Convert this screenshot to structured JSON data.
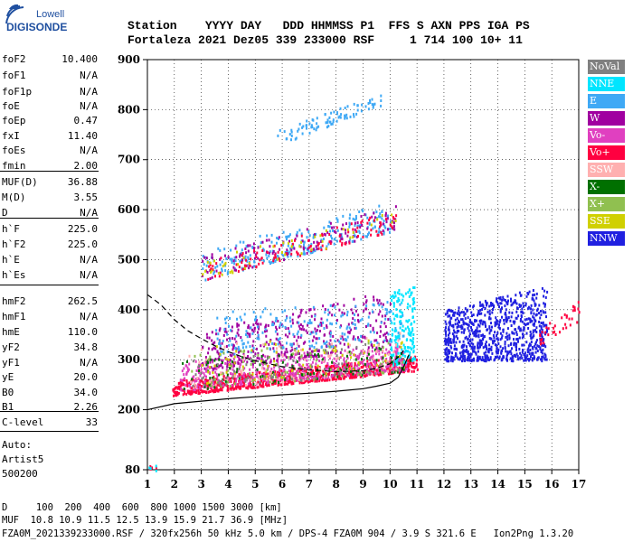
{
  "logo": {
    "line1": "Lowell",
    "line2": "DIGISONDE"
  },
  "header": {
    "labels": "Station    YYYY DAY   DDD HHMMSS P1  FFS S AXN PPS IGA PS",
    "values": "Fortaleza 2021 Dez05 339 233000 RSF     1 714 100 10+ 11"
  },
  "params": [
    {
      "name": "foF2",
      "value": "10.400"
    },
    {
      "name": "foF1",
      "value": "N/A"
    },
    {
      "name": "foF1p",
      "value": "N/A"
    },
    {
      "name": "foE",
      "value": "N/A"
    },
    {
      "name": "foEp",
      "value": "0.47"
    },
    {
      "name": "fxI",
      "value": "11.40"
    },
    {
      "name": "foEs",
      "value": "N/A"
    },
    {
      "name": "fmin",
      "value": "2.00"
    },
    {
      "name": "MUF(D)",
      "value": "36.88"
    },
    {
      "name": "M(D)",
      "value": "3.55"
    },
    {
      "name": "D",
      "value": "N/A"
    },
    {
      "name": "h`F",
      "value": "225.0"
    },
    {
      "name": "h`F2",
      "value": "225.0"
    },
    {
      "name": "h`E",
      "value": "N/A"
    },
    {
      "name": "h`Es",
      "value": "N/A"
    },
    {
      "name": "hmF2",
      "value": "262.5"
    },
    {
      "name": "hmF1",
      "value": "N/A"
    },
    {
      "name": "hmE",
      "value": "110.0"
    },
    {
      "name": "yF2",
      "value": "34.8"
    },
    {
      "name": "yF1",
      "value": "N/A"
    },
    {
      "name": "yE",
      "value": "20.0"
    },
    {
      "name": "B0",
      "value": "34.0"
    },
    {
      "name": "B1",
      "value": "2.26"
    }
  ],
  "clevel": {
    "name": "C-level",
    "value": "33"
  },
  "auto": [
    "Auto:",
    "Artist5",
    "500200"
  ],
  "legend": [
    {
      "label": "NoVal",
      "color": "#808080",
      "text": "#ffffff"
    },
    {
      "label": "NNE",
      "color": "#00e5ff",
      "text": "#ffffff"
    },
    {
      "label": "E",
      "color": "#3fa9f5",
      "text": "#ffffff"
    },
    {
      "label": "W",
      "color": "#a000a0",
      "text": "#ffffff"
    },
    {
      "label": "Vo-",
      "color": "#e040c0",
      "text": "#ffffff"
    },
    {
      "label": "Vo+",
      "color": "#ff0040",
      "text": "#ffffff"
    },
    {
      "label": "SSW",
      "color": "#ffb0b0",
      "text": "#ffffff"
    },
    {
      "label": "X-",
      "color": "#007000",
      "text": "#ffffff"
    },
    {
      "label": "X+",
      "color": "#90c050",
      "text": "#ffffff"
    },
    {
      "label": "SSE",
      "color": "#d0d000",
      "text": "#ffffff"
    },
    {
      "label": "NNW",
      "color": "#2020e0",
      "text": "#ffffff"
    }
  ],
  "footer": {
    "line1": "D     100  200  400  600  800 1000 1500 3000 [km]",
    "line2": "MUF  10.8 10.9 11.5 12.5 13.9 15.9 21.7 36.9 [MHz]",
    "line3": "FZA0M_2021339233000.RSF / 320fx256h 50 kHz 5.0 km / DPS-4 FZA0M 904 / 3.9 S 321.6 E   Ion2Png 1.3.20"
  },
  "chart_data": {
    "type": "scatter",
    "xlim": [
      1,
      17
    ],
    "ylim": [
      80,
      900
    ],
    "x_ticks": [
      "1",
      "2",
      "3",
      "4",
      "5",
      "6",
      "7",
      "8",
      "9",
      "10",
      "11",
      "12",
      "13",
      "14",
      "15",
      "16",
      "17"
    ],
    "y_ticks": [
      "80",
      "200",
      "300",
      "400",
      "500",
      "600",
      "700",
      "800",
      "900"
    ],
    "grid": true,
    "clusters": [
      {
        "color": "#ff0040",
        "xr": [
          1.9,
          11.0
        ],
        "ymin": [
          230,
          280
        ],
        "ymax": [
          260,
          310
        ],
        "n": 900
      },
      {
        "color": "#e040c0",
        "xr": [
          2.2,
          10.6
        ],
        "ymin": [
          240,
          280
        ],
        "ymax": [
          300,
          330
        ],
        "n": 500
      },
      {
        "color": "#a000a0",
        "xr": [
          3.0,
          10.0
        ],
        "ymin": [
          280,
          330
        ],
        "ymax": [
          360,
          440
        ],
        "n": 380
      },
      {
        "color": "#3fa9f5",
        "xr": [
          3.5,
          10.5
        ],
        "ymin": [
          310,
          340
        ],
        "ymax": [
          400,
          420
        ],
        "n": 220
      },
      {
        "color": "#2020e0",
        "xr": [
          12.0,
          15.8
        ],
        "ymin": [
          300,
          300
        ],
        "ymax": [
          400,
          450
        ],
        "n": 850
      },
      {
        "color": "#00e5ff",
        "xr": [
          10.0,
          10.9
        ],
        "ymin": [
          290,
          300
        ],
        "ymax": [
          440,
          450
        ],
        "n": 160
      },
      {
        "color": "#007000",
        "xr": [
          2.2,
          10.8
        ],
        "ymin": [
          240,
          280
        ],
        "ymax": [
          300,
          330
        ],
        "n": 110
      },
      {
        "color": "#90c050",
        "xr": [
          2.5,
          10.6
        ],
        "ymin": [
          240,
          280
        ],
        "ymax": [
          320,
          340
        ],
        "n": 90
      },
      {
        "color": "#d0d000",
        "xr": [
          3.0,
          10.5
        ],
        "ymin": [
          250,
          290
        ],
        "ymax": [
          330,
          360
        ],
        "n": 70
      },
      {
        "color": "#ffb0b0",
        "xr": [
          2.5,
          10.7
        ],
        "ymin": [
          240,
          280
        ],
        "ymax": [
          330,
          360
        ],
        "n": 90
      },
      {
        "color": "#808080",
        "xr": [
          2.5,
          10.5
        ],
        "ymin": [
          240,
          280
        ],
        "ymax": [
          320,
          340
        ],
        "n": 70
      },
      {
        "color": "#3fa9f5",
        "xr": [
          3.0,
          10.2
        ],
        "ymin": [
          460,
          560
        ],
        "ymax": [
          520,
          620
        ],
        "n": 260
      },
      {
        "color": "#a000a0",
        "xr": [
          3.0,
          10.2
        ],
        "ymin": [
          460,
          560
        ],
        "ymax": [
          510,
          610
        ],
        "n": 130
      },
      {
        "color": "#ff0040",
        "xr": [
          3.0,
          10.2
        ],
        "ymin": [
          460,
          560
        ],
        "ymax": [
          500,
          600
        ],
        "n": 110
      },
      {
        "color": "#d0d000",
        "xr": [
          3.0,
          10.2
        ],
        "ymin": [
          460,
          560
        ],
        "ymax": [
          500,
          600
        ],
        "n": 50
      },
      {
        "color": "#3fa9f5",
        "xr": [
          5.8,
          9.7
        ],
        "ymin": [
          730,
          810
        ],
        "ymax": [
          760,
          835
        ],
        "n": 90
      },
      {
        "color": "#ff0040",
        "xr": [
          15.5,
          17.0
        ],
        "ymin": [
          330,
          380
        ],
        "ymax": [
          360,
          420
        ],
        "n": 40
      },
      {
        "color": "#ff0040",
        "xr": [
          0.9,
          1.3
        ],
        "ymin": [
          80,
          80
        ],
        "ymax": [
          90,
          90
        ],
        "n": 6
      },
      {
        "color": "#00e5ff",
        "xr": [
          0.9,
          1.3
        ],
        "ymin": [
          80,
          80
        ],
        "ymax": [
          90,
          90
        ],
        "n": 6
      }
    ],
    "trace_solid": [
      [
        1,
        200
      ],
      [
        2,
        212
      ],
      [
        3,
        217
      ],
      [
        4,
        222
      ],
      [
        5,
        226
      ],
      [
        6,
        230
      ],
      [
        7,
        233
      ],
      [
        8,
        237
      ],
      [
        9,
        242
      ],
      [
        9.5,
        247
      ],
      [
        10,
        253
      ],
      [
        10.3,
        265
      ],
      [
        10.5,
        285
      ],
      [
        10.7,
        310
      ]
    ],
    "trace_dashed": [
      [
        1,
        430
      ],
      [
        1.5,
        410
      ],
      [
        2,
        380
      ],
      [
        2.5,
        358
      ],
      [
        3,
        342
      ],
      [
        3.5,
        328
      ],
      [
        4,
        316
      ],
      [
        4.5,
        306
      ],
      [
        5,
        298
      ],
      [
        5.5,
        292
      ],
      [
        6,
        286
      ],
      [
        7,
        280
      ],
      [
        8,
        276
      ],
      [
        9,
        278
      ],
      [
        9.5,
        283
      ],
      [
        10,
        292
      ],
      [
        10.3,
        305
      ],
      [
        10.5,
        318
      ]
    ]
  }
}
